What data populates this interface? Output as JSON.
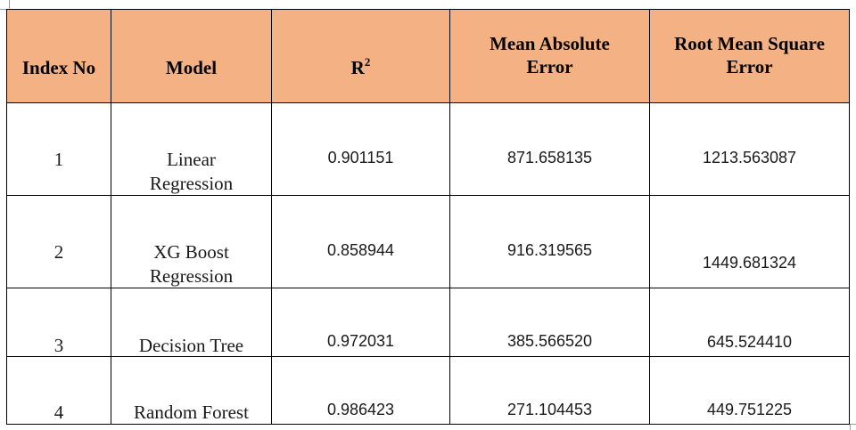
{
  "table": {
    "headers": {
      "index": "Index No",
      "model": "Model",
      "r2_base": "R",
      "r2_sup": "2",
      "mae": "Mean Absolute Error",
      "rmse": "Root Mean Square Error"
    },
    "rows": [
      {
        "index": "1",
        "model": "Linear Regression",
        "r2": "0.901151",
        "mae": "871.658135",
        "rmse": "1213.563087"
      },
      {
        "index": "2",
        "model": "XG Boost Regression",
        "r2": "0.858944",
        "mae": "916.319565",
        "rmse": "1449.681324"
      },
      {
        "index": "3",
        "model": "Decision Tree",
        "r2": "0.972031",
        "mae": "385.566520",
        "rmse": "645.524410"
      },
      {
        "index": "4",
        "model": "Random Forest",
        "r2": "0.986423",
        "mae": "271.104453",
        "rmse": "449.751225"
      }
    ]
  },
  "colors": {
    "header_background": "#f4b183",
    "border": "#000000"
  }
}
